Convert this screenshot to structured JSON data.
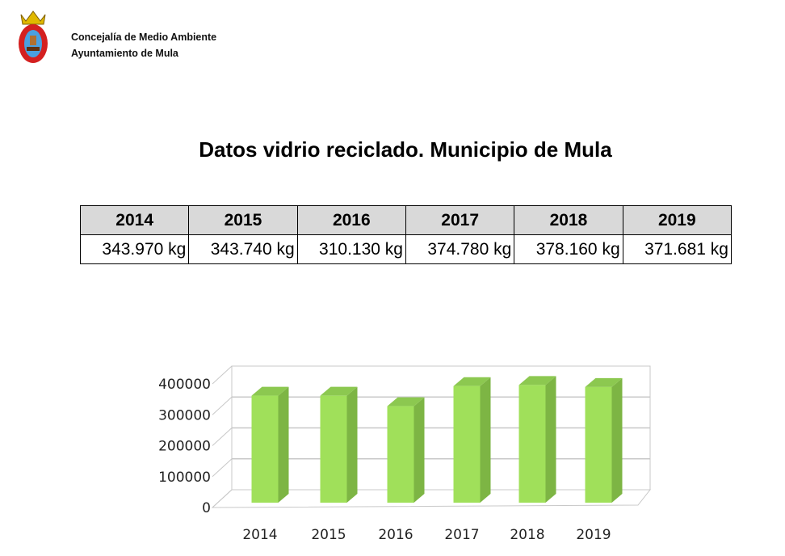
{
  "header": {
    "org_line1": "Concejalía de Medio Ambiente",
    "org_line2": "Ayuntamiento de Mula",
    "logo": "coat-of-arms-mula"
  },
  "title": "Datos vidrio reciclado. Municipio de Mula",
  "table": {
    "years": [
      "2014",
      "2015",
      "2016",
      "2017",
      "2018",
      "2019"
    ],
    "values": [
      "343.970 kg",
      "343.740 kg",
      "310.130 kg",
      "374.780 kg",
      "378.160 kg",
      "371.681 kg"
    ]
  },
  "colors": {
    "bar_front": "#a0e05a",
    "bar_side": "#7db544",
    "bar_top": "#8cc850",
    "header_bg": "#d9d9d9"
  },
  "chart_data": {
    "type": "bar",
    "title": "",
    "xlabel": "",
    "ylabel": "",
    "categories": [
      "2014",
      "2015",
      "2016",
      "2017",
      "2018",
      "2019"
    ],
    "values": [
      343970,
      343740,
      310130,
      374780,
      378160,
      371681
    ],
    "ylim": [
      0,
      400000
    ],
    "yticks": [
      "0",
      "100000",
      "200000",
      "300000",
      "400000"
    ],
    "grid": true,
    "legend": "none"
  }
}
